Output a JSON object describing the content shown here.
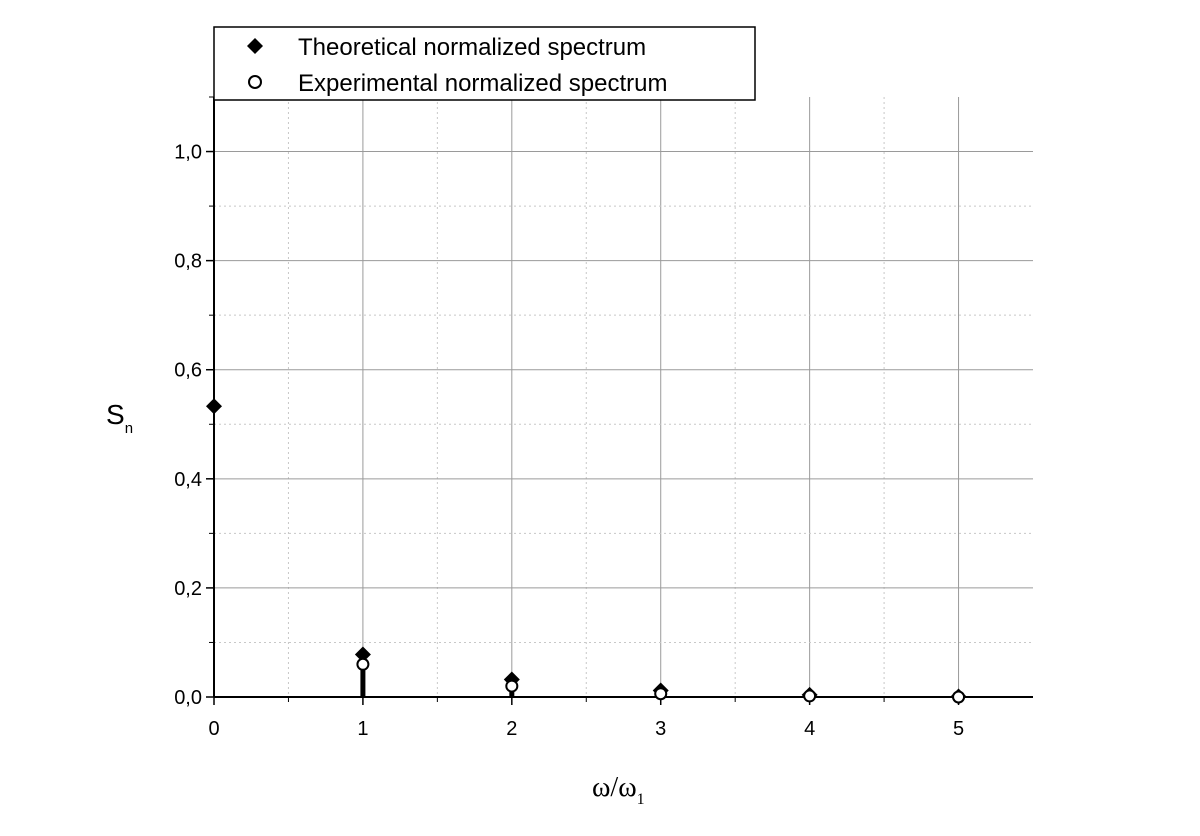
{
  "chart_data": {
    "type": "scatter",
    "x_axis": {
      "label": "ω/ω",
      "label_subscript": "1",
      "min": 0,
      "max": 5.5,
      "ticks": [
        "0",
        "1",
        "2",
        "3",
        "4",
        "5"
      ]
    },
    "y_axis": {
      "label": "S",
      "label_subscript": "n",
      "min": 0,
      "max": 1.1,
      "ticks": [
        "0,0",
        "0,2",
        "0,4",
        "0,6",
        "0,8",
        "1,0"
      ]
    },
    "grid": true,
    "legend_position": "top",
    "series": [
      {
        "name": "Theoretical normalized spectrum",
        "marker": "diamond-filled",
        "color": "#000000",
        "x": [
          0,
          1,
          2,
          3,
          4,
          5
        ],
        "y": [
          0.533,
          0.078,
          0.032,
          0.012,
          0.004,
          0.001
        ]
      },
      {
        "name": "Experimental normalized spectrum",
        "marker": "circle-open",
        "color": "#000000",
        "x": [
          1,
          2,
          3,
          4,
          5
        ],
        "y": [
          0.06,
          0.02,
          0.006,
          0.002,
          0.0
        ]
      }
    ]
  }
}
